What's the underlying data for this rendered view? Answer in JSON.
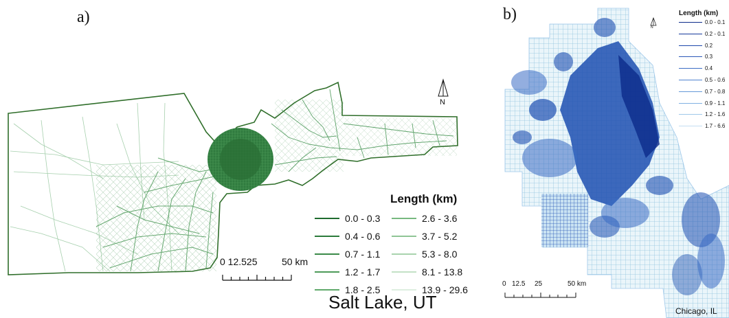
{
  "panel_a": {
    "letter": "a)",
    "city": "Salt Lake, UT",
    "north_label": "N",
    "legend_title": "Length (km)",
    "legend_items": [
      {
        "label": "0.0 - 0.3",
        "color": "#1e6b2e"
      },
      {
        "label": "0.4 - 0.6",
        "color": "#2a7a3a"
      },
      {
        "label": "0.7 - 1.1",
        "color": "#3a8a48"
      },
      {
        "label": "1.2 - 1.7",
        "color": "#4c9a58"
      },
      {
        "label": "1.8 - 2.5",
        "color": "#5fa96a"
      },
      {
        "label": "2.6 - 3.6",
        "color": "#76b87f"
      },
      {
        "label": "3.7 - 5.2",
        "color": "#8ec595"
      },
      {
        "label": "5.3 - 8.0",
        "color": "#a8d3ad"
      },
      {
        "label": "8.1 - 13.8",
        "color": "#c3e1c6"
      },
      {
        "label": "13.9 - 29.6",
        "color": "#ddeee0"
      }
    ],
    "scale": {
      "ticks": "0 12.525",
      "end": "50 km"
    },
    "fill_color": "#2f7a3e",
    "outline_color": "#2f6e2a"
  },
  "panel_b": {
    "letter": "b)",
    "city": "Chicago, IL",
    "north_label": "N",
    "legend_title": "Length (km)",
    "legend_items": [
      {
        "label": "0.0 - 0.1",
        "color": "#0b2a8a"
      },
      {
        "label": "0.2 - 0.1",
        "color": "#13379a"
      },
      {
        "label": "0.2",
        "color": "#1c46aa"
      },
      {
        "label": "0.3",
        "color": "#2a58b8"
      },
      {
        "label": "0.4",
        "color": "#3a6cc4"
      },
      {
        "label": "0.5 - 0.6",
        "color": "#4e82cf"
      },
      {
        "label": "0.7 - 0.8",
        "color": "#6498d8"
      },
      {
        "label": "0.9 - 1.1",
        "color": "#7fb0e2"
      },
      {
        "label": "1.2 - 1.6",
        "color": "#9fc8ea"
      },
      {
        "label": "1.7 - 6.6",
        "color": "#c4ddf2"
      }
    ],
    "scale": {
      "t0": "0",
      "t1": "12.5",
      "t2": "25",
      "t3": "50 km"
    },
    "dense_color": "#1d4fb0",
    "light_color": "#bfe0f0"
  }
}
